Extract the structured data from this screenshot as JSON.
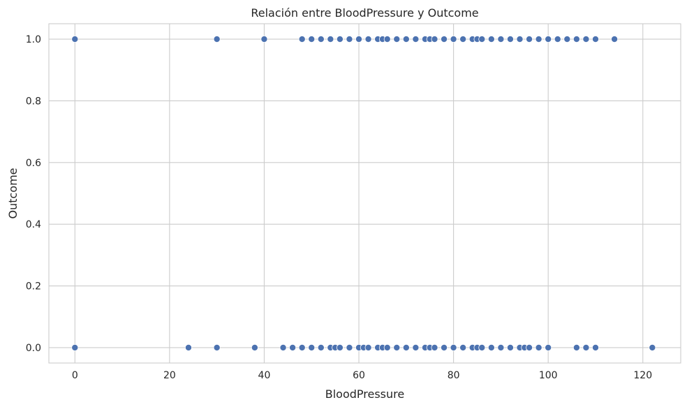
{
  "chart_data": {
    "type": "scatter",
    "title": "Relación entre BloodPressure y Outcome",
    "xlabel": "BloodPressure",
    "ylabel": "Outcome",
    "xlim": [
      -5.5,
      128
    ],
    "ylim": [
      -0.05,
      1.05
    ],
    "xticks": [
      0,
      20,
      40,
      60,
      80,
      100,
      120
    ],
    "yticks": [
      0.0,
      0.2,
      0.4,
      0.6,
      0.8,
      1.0
    ],
    "xtick_labels": [
      "0",
      "20",
      "40",
      "60",
      "80",
      "100",
      "120"
    ],
    "ytick_labels": [
      "0.0",
      "0.2",
      "0.4",
      "0.6",
      "0.8",
      "1.0"
    ],
    "grid": true,
    "color": "#4c72b0",
    "series": [
      {
        "outcome": 0,
        "x": [
          0,
          24,
          30,
          38,
          44,
          46,
          48,
          50,
          52,
          54,
          55,
          56,
          58,
          60,
          61,
          62,
          64,
          65,
          66,
          68,
          70,
          72,
          74,
          75,
          76,
          78,
          80,
          82,
          84,
          85,
          86,
          88,
          90,
          92,
          94,
          95,
          96,
          98,
          100,
          106,
          108,
          110,
          122
        ],
        "y": [
          0,
          0,
          0,
          0,
          0,
          0,
          0,
          0,
          0,
          0,
          0,
          0,
          0,
          0,
          0,
          0,
          0,
          0,
          0,
          0,
          0,
          0,
          0,
          0,
          0,
          0,
          0,
          0,
          0,
          0,
          0,
          0,
          0,
          0,
          0,
          0,
          0,
          0,
          0,
          0,
          0,
          0,
          0
        ]
      },
      {
        "outcome": 1,
        "x": [
          0,
          30,
          40,
          48,
          50,
          52,
          54,
          56,
          58,
          60,
          62,
          64,
          65,
          66,
          68,
          70,
          72,
          74,
          75,
          76,
          78,
          80,
          82,
          84,
          85,
          86,
          88,
          90,
          92,
          94,
          96,
          98,
          100,
          102,
          104,
          106,
          108,
          110,
          114
        ],
        "y": [
          1,
          1,
          1,
          1,
          1,
          1,
          1,
          1,
          1,
          1,
          1,
          1,
          1,
          1,
          1,
          1,
          1,
          1,
          1,
          1,
          1,
          1,
          1,
          1,
          1,
          1,
          1,
          1,
          1,
          1,
          1,
          1,
          1,
          1,
          1,
          1,
          1,
          1,
          1
        ]
      }
    ]
  }
}
